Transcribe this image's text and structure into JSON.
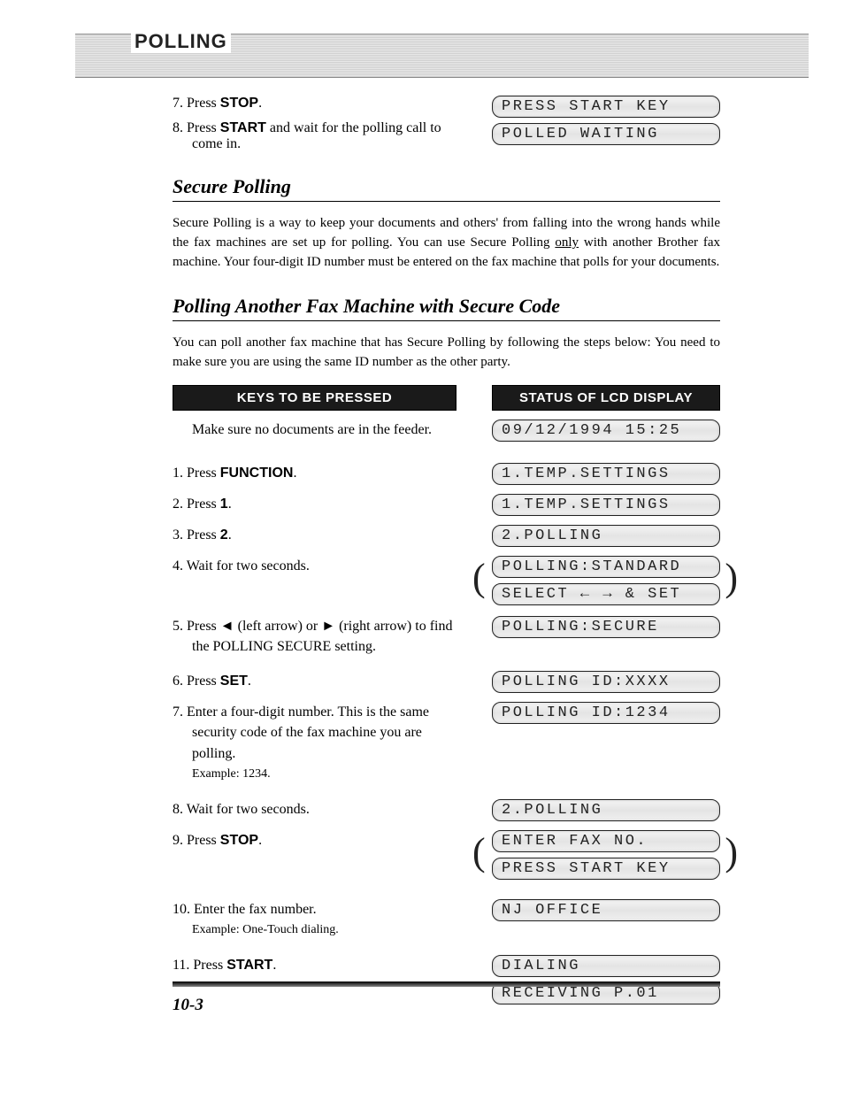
{
  "header_band_title": "POLLING",
  "top_steps": [
    {
      "num": "7.",
      "pre": "Press ",
      "bold": "STOP",
      "post": "."
    },
    {
      "num": "8.",
      "pre": "Press ",
      "bold": "START",
      "post": " and wait for the polling call to come in."
    }
  ],
  "top_lcd": [
    "PRESS START KEY",
    "POLLED WAITING"
  ],
  "section1_title": "Secure Polling",
  "section1_body_a": "Secure Polling is a way to keep your documents and others' from falling into the wrong hands while the fax machines are set up for polling. You can use Secure Polling ",
  "section1_body_u": "only",
  "section1_body_b": " with another Brother fax machine. Your four-digit ID number must be entered on the fax machine that polls for your documents.",
  "section2_title": "Polling Another Fax Machine with Secure Code",
  "section2_intro": "You can poll another fax machine that has Secure Polling by following the steps below: You need to make sure you are using the same ID number as the other party.",
  "col_hdr_left": "KEYS TO BE PRESSED",
  "col_hdr_right": "STATUS OF LCD DISPLAY",
  "rows": [
    {
      "left_pre": "",
      "left_bold": "",
      "left_post": "Make sure no documents are in the feeder.",
      "num": "",
      "lcd": [
        "09/12/1994 15:25"
      ]
    },
    {
      "num": "1.",
      "left_pre": "Press ",
      "left_bold": "FUNCTION",
      "left_post": ".",
      "lcd": [
        "1.TEMP.SETTINGS"
      ]
    },
    {
      "num": "2.",
      "left_pre": "Press ",
      "left_bold": "1",
      "left_post": ".",
      "lcd": [
        "1.TEMP.SETTINGS"
      ]
    },
    {
      "num": "3.",
      "left_pre": "Press ",
      "left_bold": "2",
      "left_post": ".",
      "lcd": [
        "2.POLLING"
      ]
    },
    {
      "num": "4.",
      "left_pre": "",
      "left_bold": "",
      "left_post": "Wait for two seconds.",
      "lcd": [
        "POLLING:STANDARD",
        "SELECT ← → & SET"
      ],
      "bracket": true
    },
    {
      "num": "5.",
      "left_pre": "Press ◄ (left arrow) or ► (right arrow) to find the POLLING SECURE setting.",
      "left_bold": "",
      "left_post": "",
      "lcd": [
        "POLLING:SECURE"
      ]
    },
    {
      "num": "6.",
      "left_pre": "Press ",
      "left_bold": "SET",
      "left_post": ".",
      "lcd": [
        "POLLING ID:XXXX"
      ]
    },
    {
      "num": "7.",
      "left_pre": "",
      "left_bold": "",
      "left_post": "Enter a four-digit number. This is the same security code of the fax machine you are polling.",
      "sub": "Example: 1234.",
      "lcd": [
        "POLLING ID:1234"
      ]
    },
    {
      "num": "8.",
      "left_pre": "",
      "left_bold": "",
      "left_post": "Wait for two seconds.",
      "lcd": [
        "2.POLLING"
      ]
    },
    {
      "num": "9.",
      "left_pre": "Press ",
      "left_bold": "STOP",
      "left_post": ".",
      "lcd": [
        "ENTER FAX NO.",
        "PRESS START KEY"
      ],
      "bracket": true
    },
    {
      "num": "10.",
      "left_pre": "",
      "left_bold": "",
      "left_post": "Enter the fax number.",
      "sub": "Example: One-Touch dialing.",
      "lcd": [
        "NJ OFFICE"
      ]
    },
    {
      "num": "11.",
      "left_pre": "Press ",
      "left_bold": "START",
      "left_post": ".",
      "lcd": [
        "DIALING",
        "RECEIVING   P.01"
      ]
    }
  ],
  "page_number": "10-3"
}
